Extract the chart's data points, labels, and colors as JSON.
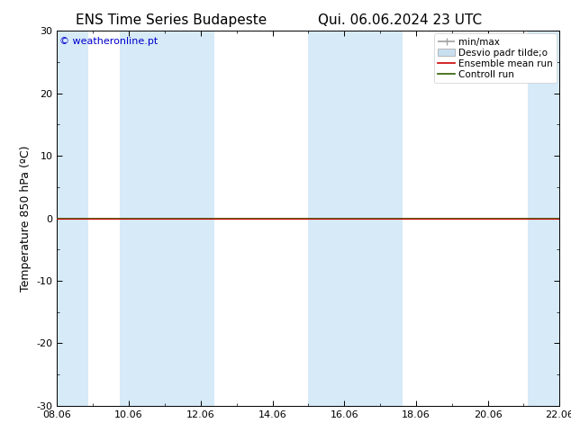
{
  "title_left": "ENS Time Series Budapeste",
  "title_right": "Qui. 06.06.2024 23 UTC",
  "ylabel": "Temperature 850 hPa (ºC)",
  "ylim": [
    -30,
    30
  ],
  "yticks": [
    -30,
    -20,
    -10,
    0,
    10,
    20,
    30
  ],
  "xtick_labels": [
    "08.06",
    "10.06",
    "12.06",
    "14.06",
    "16.06",
    "18.06",
    "20.06",
    "22.06"
  ],
  "xmin": 0.0,
  "xmax": 16.0,
  "watermark": "© weatheronline.pt",
  "bg_color": "#ffffff",
  "plot_bg": "#ffffff",
  "shaded_bands_color": "#d6eaf8",
  "shaded_bands": [
    [
      0.0,
      1.0
    ],
    [
      2.0,
      4.0
    ],
    [
      4.0,
      5.0
    ],
    [
      8.0,
      9.5
    ],
    [
      9.5,
      11.0
    ],
    [
      15.0,
      16.0
    ]
  ],
  "zero_line_color": "#2e5e00",
  "ensemble_mean_color": "#cc0000",
  "control_run_color": "#2e5e00",
  "legend_labels": [
    "min/max",
    "Desvio padr tilde;o",
    "Ensemble mean run",
    "Controll run"
  ],
  "minmax_color": "#a0a0a0",
  "desvio_color": "#c8dff0",
  "font_size_title": 11,
  "font_size_labels": 9,
  "font_size_ticks": 8,
  "font_size_legend": 7.5,
  "font_size_watermark": 8
}
